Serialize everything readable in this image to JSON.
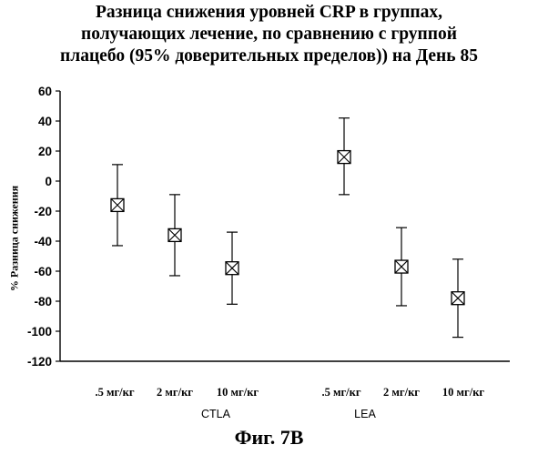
{
  "chart_data": {
    "type": "scatter",
    "title_lines": [
      "Разница снижения уровней CRP в группах,",
      "получающих лечение, по сравнению с группой",
      "плацебо (95% доверительных пределов)) на День 85"
    ],
    "ylabel": "% Разница снижения",
    "ylim": [
      -120,
      60
    ],
    "yticks": [
      60,
      40,
      20,
      0,
      -20,
      -40,
      -60,
      -80,
      -100,
      -120
    ],
    "groups": [
      "CTLA",
      "LEA"
    ],
    "points": [
      {
        "group": "CTLA",
        "category": ".5 мг/кг",
        "value": -16,
        "low": -43,
        "high": 11
      },
      {
        "group": "CTLA",
        "category": "2 мг/кг",
        "value": -36,
        "low": -63,
        "high": -9
      },
      {
        "group": "CTLA",
        "category": "10 мг/кг",
        "value": -58,
        "low": -82,
        "high": -34
      },
      {
        "group": "LEA",
        "category": ".5 мг/кг",
        "value": 16,
        "low": -9,
        "high": 42
      },
      {
        "group": "LEA",
        "category": "2 мг/кг",
        "value": -57,
        "low": -83,
        "high": -31
      },
      {
        "group": "LEA",
        "category": "10 мг/кг",
        "value": -78,
        "low": -104,
        "high": -52
      }
    ],
    "marker": "boxed-x",
    "grid": false,
    "legend": "none"
  },
  "caption": "Фиг. 7В"
}
